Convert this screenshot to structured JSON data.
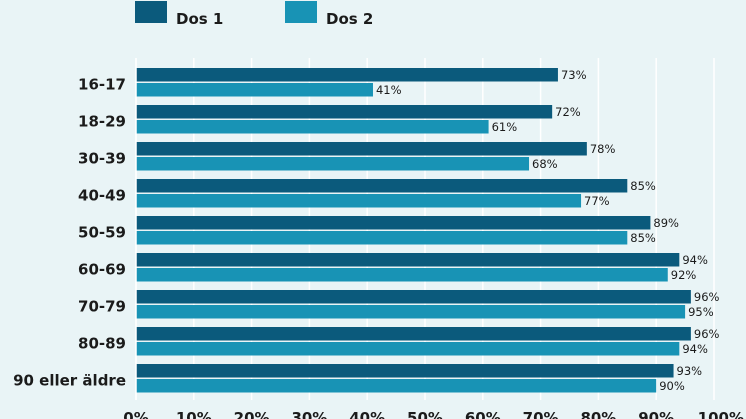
{
  "chart_data": {
    "type": "bar",
    "orientation": "horizontal",
    "categories": [
      "16-17",
      "18-29",
      "30-39",
      "40-49",
      "50-59",
      "60-69",
      "70-79",
      "80-89",
      "90 eller äldre"
    ],
    "series": [
      {
        "name": "Dos 1",
        "color": "#0b5a7c",
        "values": [
          73,
          72,
          78,
          85,
          89,
          94,
          96,
          96,
          93
        ],
        "labels": [
          "73%",
          "72%",
          "78%",
          "85%",
          "89%",
          "94%",
          "96%",
          "96%",
          "93%"
        ]
      },
      {
        "name": "Dos 2",
        "color": "#1893b5",
        "values": [
          41,
          61,
          68,
          77,
          85,
          92,
          95,
          94,
          90
        ],
        "labels": [
          "41%",
          "61%",
          "68%",
          "77%",
          "85%",
          "92%",
          "95%",
          "94%",
          "90%"
        ]
      }
    ],
    "xlim": [
      0,
      100
    ],
    "xticks": [
      "0%",
      "10%",
      "20%",
      "30%",
      "40%",
      "50%",
      "60%",
      "70%",
      "80%",
      "90%",
      "100%"
    ],
    "grid": true,
    "legend_position": "top-left",
    "background": "#e9f4f6",
    "grid_color": "#ffffff"
  }
}
